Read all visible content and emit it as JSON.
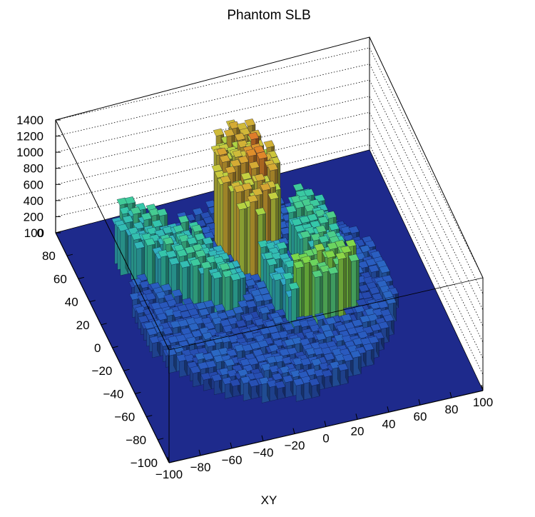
{
  "chart_data": {
    "type": "lego3d",
    "title": "Phantom SLB",
    "xlabel": "XY",
    "ylabel": "",
    "zlabel": "",
    "xlim": [
      -100,
      100
    ],
    "ylim": [
      -100,
      100
    ],
    "zlim": [
      0,
      1400
    ],
    "x_ticks": [
      "-100",
      "-80",
      "-60",
      "-40",
      "-20",
      "0",
      "20",
      "40",
      "60",
      "80",
      "100"
    ],
    "y_ticks": [
      "-100",
      "-80",
      "-60",
      "-40",
      "-20",
      "0",
      "20",
      "40",
      "60",
      "80",
      "100"
    ],
    "z_ticks": [
      "0",
      "200",
      "400",
      "600",
      "800",
      "1000",
      "1200",
      "1400"
    ],
    "grid": true,
    "background_color": "#1e2a8c",
    "palette": [
      "#1e2a8c",
      "#2a5cc0",
      "#2f9fd0",
      "#35c8a8",
      "#7ad84a",
      "#c8d040",
      "#e08a2a",
      "#d8302a"
    ],
    "regions": [
      {
        "shape": "disk",
        "cx": -2,
        "cy": 5,
        "r": 78,
        "value": 180,
        "noise": 60
      },
      {
        "shape": "ellipse",
        "cx": -45,
        "cy": 35,
        "rx": 16,
        "ry": 46,
        "angle": 35,
        "value": 560,
        "noise": 90
      },
      {
        "shape": "ellipse",
        "cx": 5,
        "cy": 55,
        "rx": 18,
        "ry": 34,
        "angle": -8,
        "value": 1020,
        "noise": 110
      },
      {
        "shape": "ellipse",
        "cx": 12,
        "cy": 55,
        "rx": 5,
        "ry": 8,
        "angle": 0,
        "value": 1180,
        "noise": 60
      },
      {
        "shape": "ellipse",
        "cx": 38,
        "cy": 25,
        "rx": 12,
        "ry": 30,
        "angle": 0,
        "value": 600,
        "noise": 80
      },
      {
        "shape": "ellipse",
        "cx": 8,
        "cy": 5,
        "rx": 7,
        "ry": 28,
        "angle": 0,
        "value": 520,
        "noise": 90
      },
      {
        "shape": "ellipse",
        "cx": 30,
        "cy": -14,
        "rx": 20,
        "ry": 10,
        "angle": 0,
        "value": 760,
        "noise": 120
      }
    ]
  }
}
